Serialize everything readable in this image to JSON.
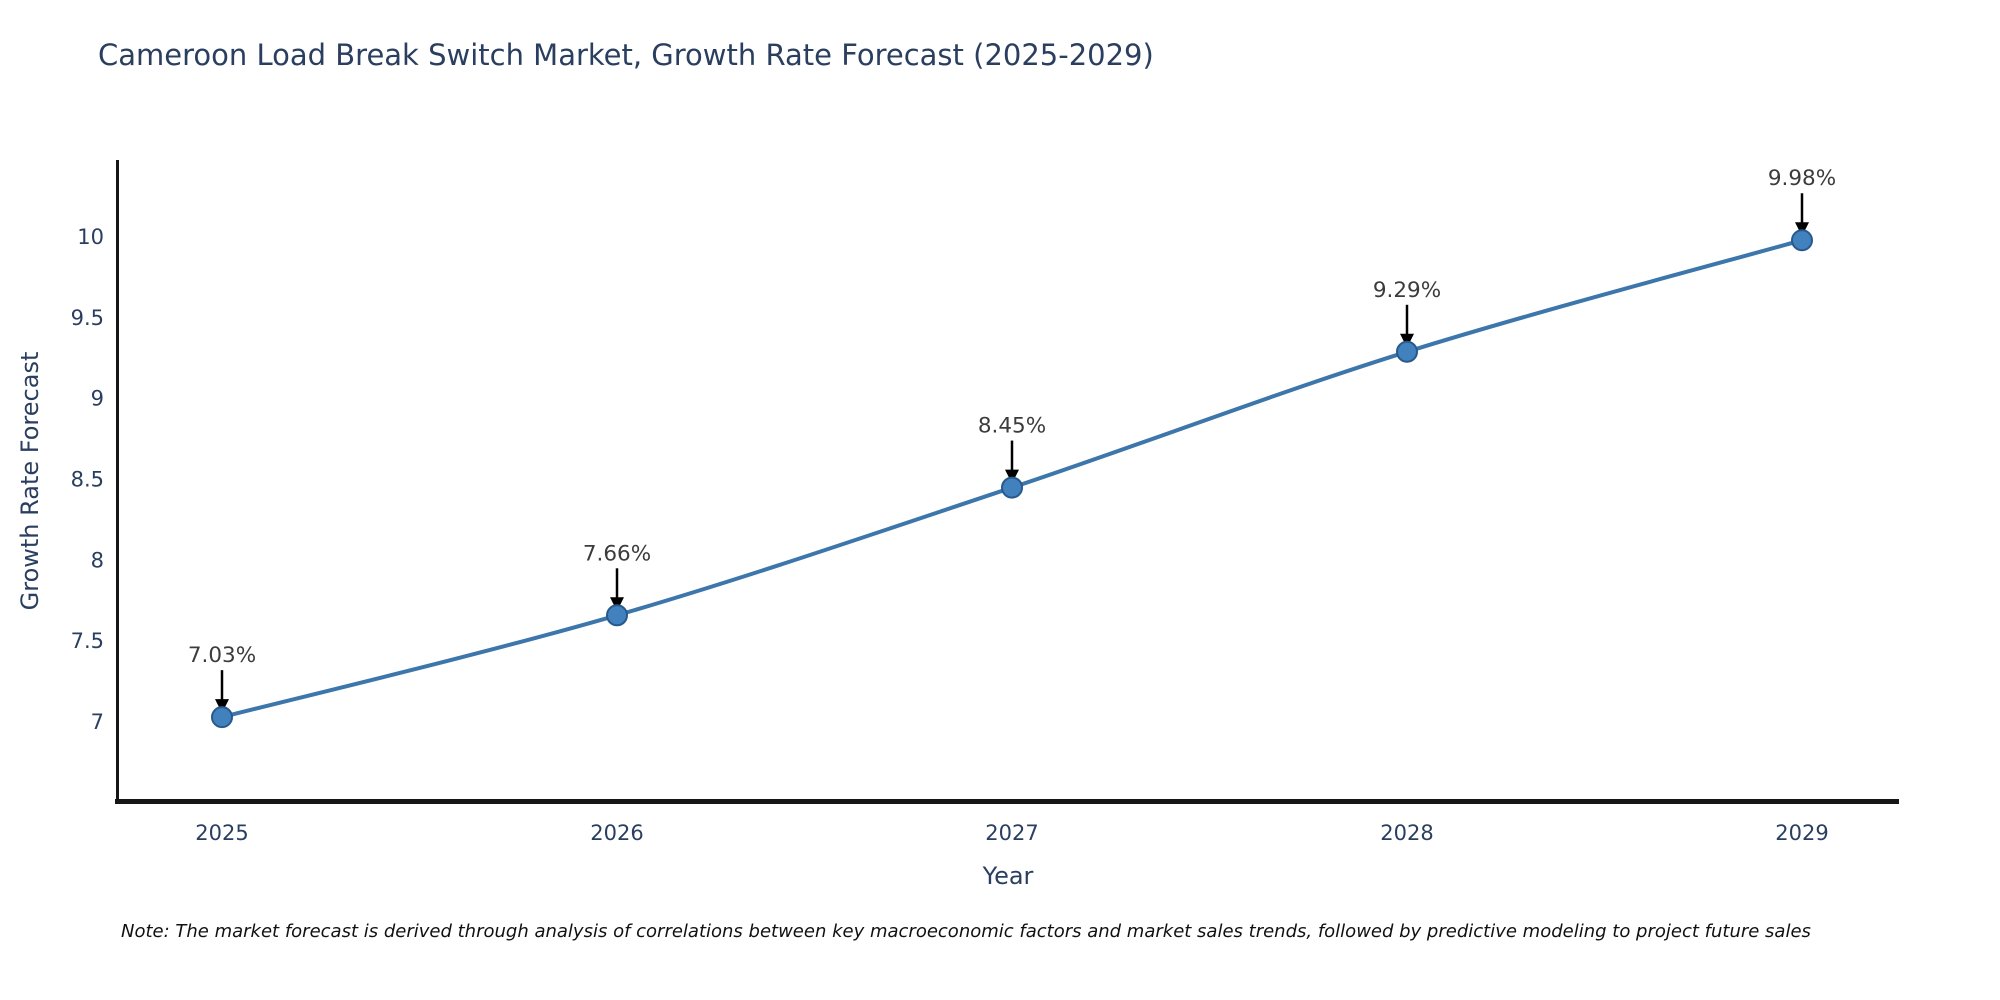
{
  "title": "Cameroon Load Break Switch Market, Growth Rate Forecast (2025-2029)",
  "note": "Note: The market forecast is derived through analysis of correlations between key macroeconomic factors and market sales trends, followed by predictive modeling to project future sales",
  "chart_data": {
    "type": "line",
    "title": "Cameroon Load Break Switch Market, Growth Rate Forecast (2025-2029)",
    "categories": [
      "2025",
      "2026",
      "2027",
      "2028",
      "2029"
    ],
    "values": [
      7.03,
      7.66,
      8.45,
      9.29,
      9.98
    ],
    "point_labels": [
      "7.03%",
      "7.66%",
      "8.45%",
      "9.29%",
      "9.98%"
    ],
    "xlabel": "Year",
    "ylabel": "Growth Rate Forecast",
    "yticks": [
      7,
      7.5,
      8,
      8.5,
      9,
      9.5,
      10
    ],
    "ylim": [
      6.5,
      10.5
    ],
    "grid": false,
    "legend_position": "none",
    "colors": {
      "line": "#3d76ab",
      "marker_fill": "#4182be",
      "marker_edge": "#28598c",
      "axis": "#161616",
      "tick_text": "#2a3f5f",
      "annotation_text": "#3c3c3c",
      "annotation_arrow": "#000000"
    }
  }
}
